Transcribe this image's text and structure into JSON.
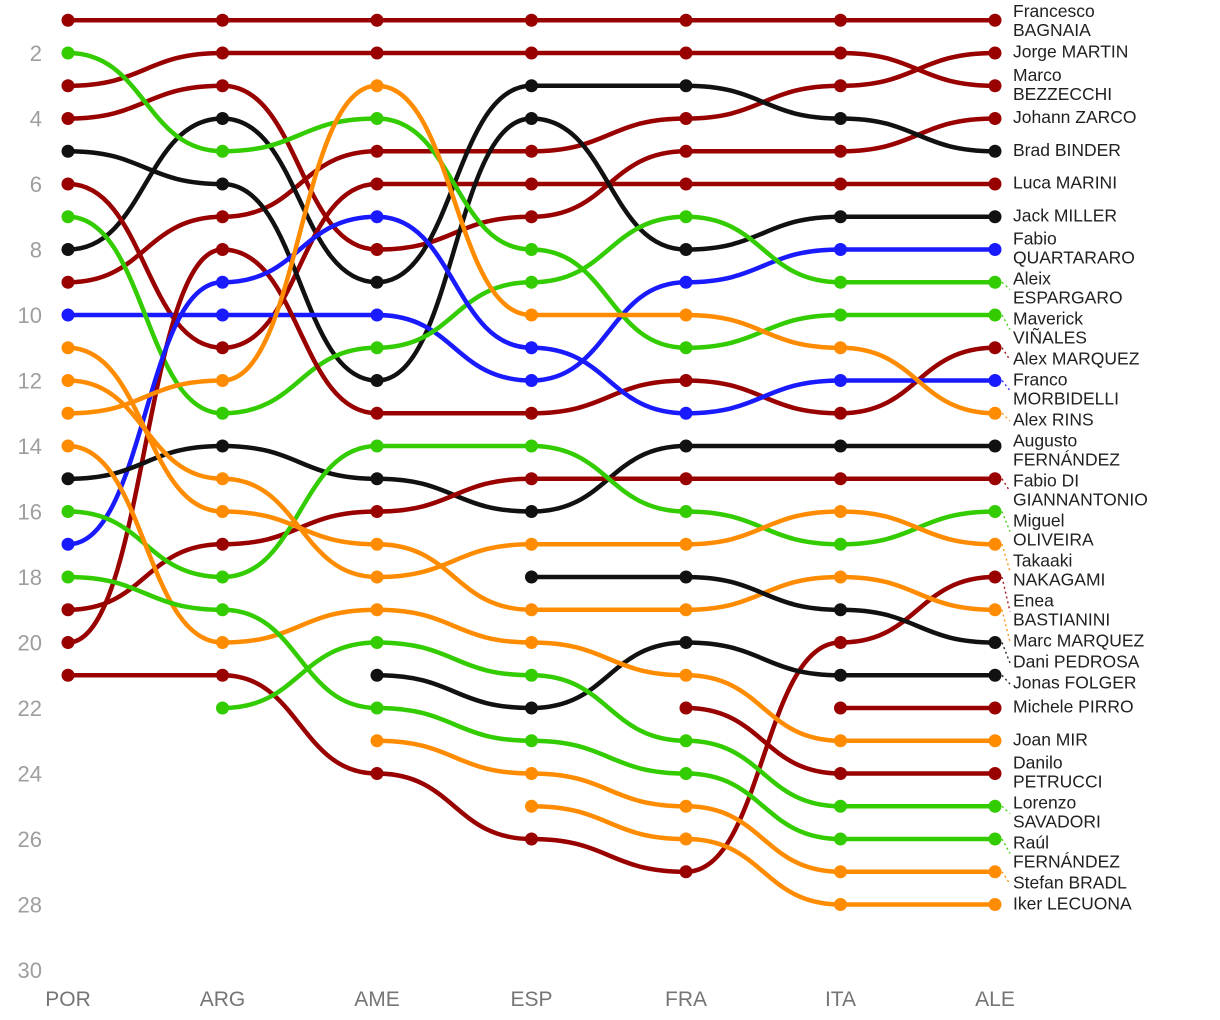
{
  "chart_data": {
    "type": "bump",
    "grid": false,
    "legend_position": "right",
    "rounds": [
      "POR",
      "ARG",
      "AME",
      "ESP",
      "FRA",
      "ITA",
      "ALE"
    ],
    "y_axis_ticks": [
      2,
      4,
      6,
      8,
      10,
      12,
      14,
      16,
      18,
      20,
      22,
      24,
      26,
      28,
      30
    ],
    "y_range": [
      1,
      30
    ],
    "colors": {
      "ducati": "#990000",
      "ktm": "#111111",
      "yamaha": "#1a1aff",
      "aprilia": "#33cc00",
      "honda": "#ff8c00"
    },
    "series": [
      {
        "name": "Francesco BAGNAIA",
        "label_lines": [
          "Francesco",
          "BAGNAIA"
        ],
        "color": "#990000",
        "ranks": [
          1,
          1,
          1,
          1,
          1,
          1,
          1
        ]
      },
      {
        "name": "Jorge MARTIN",
        "label_lines": [
          "Jorge MARTIN"
        ],
        "color": "#990000",
        "ranks": [
          9,
          7,
          5,
          5,
          4,
          3,
          2
        ]
      },
      {
        "name": "Marco BEZZECCHI",
        "label_lines": [
          "Marco",
          "BEZZECCHI"
        ],
        "color": "#990000",
        "ranks": [
          3,
          2,
          2,
          2,
          2,
          2,
          3
        ]
      },
      {
        "name": "Johann ZARCO",
        "label_lines": [
          "Johann ZARCO"
        ],
        "color": "#990000",
        "ranks": [
          4,
          3,
          8,
          7,
          5,
          5,
          4
        ]
      },
      {
        "name": "Brad BINDER",
        "label_lines": [
          "Brad BINDER"
        ],
        "color": "#111111",
        "ranks": [
          8,
          4,
          9,
          3,
          3,
          4,
          5
        ]
      },
      {
        "name": "Luca MARINI",
        "label_lines": [
          "Luca MARINI"
        ],
        "color": "#990000",
        "ranks": [
          6,
          11,
          6,
          6,
          6,
          6,
          6
        ]
      },
      {
        "name": "Jack MILLER",
        "label_lines": [
          "Jack MILLER"
        ],
        "color": "#111111",
        "ranks": [
          5,
          6,
          12,
          4,
          8,
          7,
          7
        ]
      },
      {
        "name": "Fabio QUARTARARO",
        "label_lines": [
          "Fabio",
          "QUARTARARO"
        ],
        "color": "#1a1aff",
        "ranks": [
          10,
          10,
          10,
          12,
          9,
          8,
          8
        ]
      },
      {
        "name": "Aleix ESPARGARO",
        "label_lines": [
          "Aleix",
          "ESPARGARO"
        ],
        "color": "#33cc00",
        "ranks": [
          7,
          13,
          11,
          9,
          7,
          9,
          9
        ]
      },
      {
        "name": "Maverick VIÑALES",
        "label_lines": [
          "Maverick",
          "VIÑALES"
        ],
        "color": "#33cc00",
        "ranks": [
          2,
          5,
          4,
          8,
          11,
          10,
          10
        ]
      },
      {
        "name": "Alex MARQUEZ",
        "label_lines": [
          "Alex MARQUEZ"
        ],
        "color": "#990000",
        "ranks": [
          20,
          8,
          13,
          13,
          12,
          13,
          11
        ]
      },
      {
        "name": "Franco MORBIDELLI",
        "label_lines": [
          "Franco",
          "MORBIDELLI"
        ],
        "color": "#1a1aff",
        "ranks": [
          17,
          9,
          7,
          11,
          13,
          12,
          12
        ]
      },
      {
        "name": "Alex RINS",
        "label_lines": [
          "Alex RINS"
        ],
        "color": "#ff8c00",
        "ranks": [
          13,
          12,
          3,
          10,
          10,
          11,
          13
        ]
      },
      {
        "name": "Augusto FERNÁNDEZ",
        "label_lines": [
          "Augusto",
          "FERNÁNDEZ"
        ],
        "color": "#111111",
        "ranks": [
          15,
          14,
          15,
          16,
          14,
          14,
          14
        ]
      },
      {
        "name": "Fabio DI GIANNANTONIO",
        "label_lines": [
          "Fabio DI",
          "GIANNANTONIO"
        ],
        "color": "#990000",
        "ranks": [
          19,
          17,
          16,
          15,
          15,
          15,
          15
        ]
      },
      {
        "name": "Miguel OLIVEIRA",
        "label_lines": [
          "Miguel",
          "OLIVEIRA"
        ],
        "color": "#33cc00",
        "ranks": [
          16,
          18,
          14,
          14,
          16,
          17,
          16
        ]
      },
      {
        "name": "Takaaki NAKAGAMI",
        "label_lines": [
          "Takaaki",
          "NAKAGAMI"
        ],
        "color": "#ff8c00",
        "ranks": [
          12,
          15,
          18,
          17,
          17,
          16,
          17
        ]
      },
      {
        "name": "Enea BASTIANINI",
        "label_lines": [
          "Enea",
          "BASTIANINI"
        ],
        "color": "#990000",
        "ranks": [
          21,
          21,
          24,
          26,
          27,
          20,
          18
        ]
      },
      {
        "name": "Marc MARQUEZ",
        "label_lines": [
          "Marc MARQUEZ"
        ],
        "color": "#ff8c00",
        "ranks": [
          11,
          16,
          17,
          19,
          19,
          18,
          19
        ]
      },
      {
        "name": "Dani PEDROSA",
        "label_lines": [
          "Dani PEDROSA"
        ],
        "color": "#111111",
        "ranks": [
          null,
          null,
          null,
          18,
          18,
          19,
          20
        ]
      },
      {
        "name": "Jonas FOLGER",
        "label_lines": [
          "Jonas FOLGER"
        ],
        "color": "#111111",
        "ranks": [
          null,
          null,
          21,
          22,
          20,
          21,
          21
        ]
      },
      {
        "name": "Michele PIRRO",
        "label_lines": [
          "Michele PIRRO"
        ],
        "color": "#990000",
        "ranks": [
          null,
          null,
          null,
          null,
          null,
          22,
          22
        ]
      },
      {
        "name": "Joan MIR",
        "label_lines": [
          "Joan MIR"
        ],
        "color": "#ff8c00",
        "ranks": [
          14,
          20,
          19,
          20,
          21,
          23,
          23
        ]
      },
      {
        "name": "Danilo PETRUCCI",
        "label_lines": [
          "Danilo",
          "PETRUCCI"
        ],
        "color": "#990000",
        "ranks": [
          null,
          null,
          null,
          null,
          22,
          24,
          24
        ]
      },
      {
        "name": "Lorenzo SAVADORI",
        "label_lines": [
          "Lorenzo",
          "SAVADORI"
        ],
        "color": "#33cc00",
        "ranks": [
          null,
          22,
          20,
          21,
          23,
          25,
          25
        ]
      },
      {
        "name": "Raúl FERNÁNDEZ",
        "label_lines": [
          "Raúl",
          "FERNÁNDEZ"
        ],
        "color": "#33cc00",
        "ranks": [
          18,
          19,
          22,
          23,
          24,
          26,
          26
        ]
      },
      {
        "name": "Stefan BRADL",
        "label_lines": [
          "Stefan BRADL"
        ],
        "color": "#ff8c00",
        "ranks": [
          null,
          null,
          23,
          24,
          25,
          27,
          27
        ]
      },
      {
        "name": "Iker LECUONA",
        "label_lines": [
          "Iker LECUONA"
        ],
        "color": "#ff8c00",
        "ranks": [
          null,
          null,
          null,
          25,
          26,
          28,
          28
        ]
      }
    ]
  }
}
